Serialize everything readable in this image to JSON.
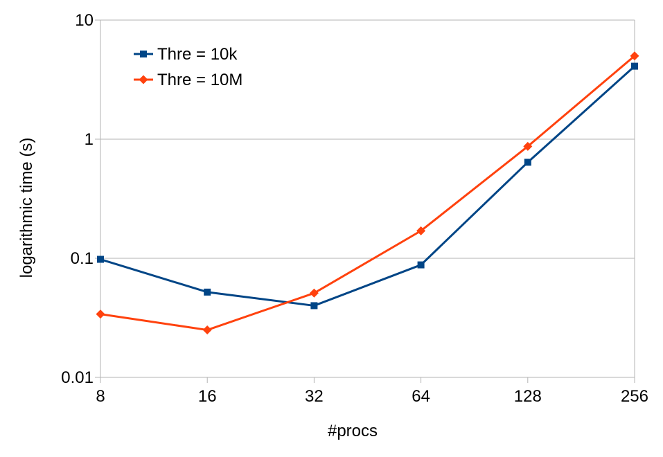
{
  "chart_data": {
    "type": "line",
    "title": "",
    "xlabel": "#procs",
    "ylabel": "logarithmic time (s)",
    "x_scale": "log2",
    "y_scale": "log10",
    "x": [
      8,
      16,
      32,
      64,
      128,
      256
    ],
    "x_tick_labels": [
      "8",
      "16",
      "32",
      "64",
      "128",
      "256"
    ],
    "ylim": [
      0.01,
      10
    ],
    "y_ticks": [
      0.01,
      0.1,
      1,
      10
    ],
    "y_tick_labels": [
      "0.01",
      "0.1",
      "1",
      "10"
    ],
    "grid": "horizontal",
    "legend": "top-left",
    "series": [
      {
        "name": "Thre = 10k",
        "color": "#004586",
        "marker": "square",
        "values": [
          0.098,
          0.052,
          0.04,
          0.088,
          0.64,
          4.1
        ]
      },
      {
        "name": "Thre = 10M",
        "color": "#ff420e",
        "marker": "diamond",
        "values": [
          0.034,
          0.025,
          0.051,
          0.17,
          0.87,
          5.0
        ]
      }
    ]
  }
}
